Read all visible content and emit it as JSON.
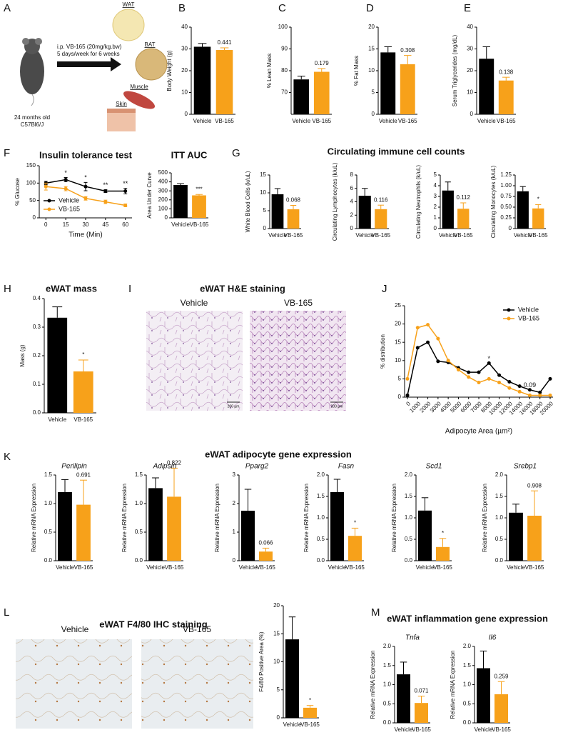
{
  "panel_labels": [
    "A",
    "B",
    "C",
    "D",
    "E",
    "F",
    "G",
    "H",
    "I",
    "J",
    "K",
    "L",
    "M"
  ],
  "schematic": {
    "mouse_age": "24 months old",
    "strain": "C57Bl6/J",
    "treatment": "i.p. VB-165 (20mg/kg.bw)",
    "schedule": "5 days/week for 6 weeks",
    "tissues": [
      "WAT",
      "BAT",
      "Muscle",
      "Skin"
    ]
  },
  "section_titles": {
    "G": "Circulating immune cell counts",
    "I": "eWAT H&E staining",
    "K": "eWAT adipocyte gene expression",
    "L": "eWAT F4/80 IHC staining",
    "M": "eWAT inflammation gene expression"
  },
  "images": {
    "he_labels": [
      "Vehicle",
      "VB-165"
    ],
    "he_scale": "200 µm",
    "ihc_labels": [
      "Vehicle",
      "VB-165"
    ]
  },
  "chart_data": [
    {
      "type": "bar",
      "ylabel": "Body Weight (g)",
      "categories": [
        "Vehicle",
        "VB-165"
      ],
      "values": [
        31,
        29.5
      ],
      "errors": [
        1.5,
        1
      ],
      "colors": [
        "#000000",
        "#f7a11a"
      ],
      "annotation": "0.441",
      "ylim": [
        0,
        40
      ],
      "yticks": [
        0,
        10,
        20,
        30,
        40
      ]
    },
    {
      "type": "bar",
      "ylabel": "% Lean Mass",
      "categories": [
        "Vehicle",
        "VB-165"
      ],
      "values": [
        76,
        79.5
      ],
      "errors": [
        1.5,
        1.5
      ],
      "colors": [
        "#000000",
        "#f7a11a"
      ],
      "annotation": "0.179",
      "ylim": [
        60,
        100
      ],
      "yticks": [
        70,
        80,
        90,
        100
      ]
    },
    {
      "type": "bar",
      "ylabel": "% Fat Mass",
      "categories": [
        "Vehicle",
        "VB-165"
      ],
      "values": [
        14.2,
        11.5
      ],
      "errors": [
        1.3,
        2
      ],
      "colors": [
        "#000000",
        "#f7a11a"
      ],
      "annotation": "0.308",
      "ylim": [
        0,
        20
      ],
      "yticks": [
        0,
        5,
        10,
        15,
        20
      ]
    },
    {
      "type": "bar",
      "ylabel": "Serum Triglycerides (mg/dL)",
      "categories": [
        "Vehicle",
        "VB-165"
      ],
      "values": [
        25.5,
        15.5
      ],
      "errors": [
        5.5,
        1.5
      ],
      "colors": [
        "#000000",
        "#f7a11a"
      ],
      "annotation": "0.138",
      "ylim": [
        0,
        40
      ],
      "yticks": [
        0,
        10,
        20,
        30,
        40
      ]
    },
    {
      "type": "line",
      "title": "Insulin tolerance test",
      "xlabel": "Time (Min)",
      "ylabel": "% Glucose",
      "x": [
        0,
        15,
        30,
        45,
        60
      ],
      "xlim": [
        -5,
        65
      ],
      "xticks": [
        0,
        15,
        30,
        45,
        60
      ],
      "ylim": [
        0,
        150
      ],
      "yticks": [
        0,
        50,
        100,
        150
      ],
      "legend": "lower left",
      "series": [
        {
          "name": "Vehicle",
          "color": "#000000",
          "values": [
            100,
            110,
            90,
            77,
            77
          ],
          "errors": [
            5,
            6,
            12,
            4,
            8
          ]
        },
        {
          "name": "VB-165",
          "color": "#f7a11a",
          "values": [
            90,
            84,
            56,
            46,
            36
          ],
          "errors": [
            10,
            6,
            5,
            5,
            4
          ]
        }
      ],
      "annotations": [
        {
          "x": 15,
          "text": "*"
        },
        {
          "x": 30,
          "text": "*"
        },
        {
          "x": 45,
          "text": "**"
        },
        {
          "x": 60,
          "text": "**"
        }
      ]
    },
    {
      "type": "bar",
      "title": "ITT AUC",
      "ylabel": "Area Under Curve",
      "categories": [
        "Vehicle",
        "VB-165"
      ],
      "values": [
        365,
        250
      ],
      "errors": [
        15,
        10
      ],
      "colors": [
        "#000000",
        "#f7a11a"
      ],
      "annotation": "***",
      "ylim": [
        0,
        500
      ],
      "yticks": [
        0,
        100,
        200,
        300,
        400,
        500
      ]
    },
    {
      "type": "bar",
      "ylabel": "White Blood Cells (k/uL)",
      "categories": [
        "Vehicle",
        "VB-165"
      ],
      "values": [
        9.6,
        5.4
      ],
      "errors": [
        1.6,
        1.1
      ],
      "colors": [
        "#000000",
        "#f7a11a"
      ],
      "annotation": "0.068",
      "ylim": [
        0,
        15
      ],
      "yticks": [
        0,
        5,
        10,
        15
      ]
    },
    {
      "type": "bar",
      "ylabel": "Circulating Lymphocytes (k/uL)",
      "categories": [
        "Vehicle",
        "VB-165"
      ],
      "values": [
        4.9,
        2.9
      ],
      "errors": [
        1.1,
        0.6
      ],
      "colors": [
        "#000000",
        "#f7a11a"
      ],
      "annotation": "0.116",
      "ylim": [
        0,
        8
      ],
      "yticks": [
        0,
        2,
        4,
        6,
        8
      ]
    },
    {
      "type": "bar",
      "ylabel": "Circulating Neutrophils (k/uL)",
      "categories": [
        "Vehicle",
        "VB-165"
      ],
      "values": [
        3.55,
        1.85
      ],
      "errors": [
        0.8,
        0.55
      ],
      "colors": [
        "#000000",
        "#f7a11a"
      ],
      "annotation": "0.112",
      "ylim": [
        0,
        5
      ],
      "yticks": [
        0,
        1,
        2,
        3,
        4,
        5
      ]
    },
    {
      "type": "bar",
      "ylabel": "Circulating Monocytes (k/uL)",
      "categories": [
        "Vehicle",
        "VB-165"
      ],
      "values": [
        0.87,
        0.47
      ],
      "errors": [
        0.11,
        0.09
      ],
      "colors": [
        "#000000",
        "#f7a11a"
      ],
      "annotation": "*",
      "ylim": [
        0,
        1.25
      ],
      "yticks": [
        0,
        0.25,
        {
          "value": 0.5,
          "label": "0.50"
        },
        0.75,
        {
          "value": 1,
          "label": "1.00"
        },
        1.25
      ]
    },
    {
      "type": "bar",
      "title": "eWAT mass",
      "ylabel": "Mass (g)",
      "categories": [
        "Vehicle",
        "VB-165"
      ],
      "values": [
        0.333,
        0.145
      ],
      "errors": [
        0.038,
        0.04
      ],
      "colors": [
        "#000000",
        "#f7a11a"
      ],
      "annotation": "*",
      "ylim": [
        0,
        0.4
      ],
      "yticks": [
        {
          "value": 0,
          "label": "0.0"
        },
        0.1,
        0.2,
        0.3,
        0.4
      ]
    },
    {
      "type": "line",
      "xlabel": "Adipocyte Area (µm²)",
      "ylabel": "% distribution",
      "categories": [
        "0",
        "1000",
        "2000",
        "3000",
        "4000",
        "5000",
        "6000",
        "7000",
        "8000",
        "10000",
        "12000",
        "14000",
        "16000",
        "18000",
        "20000"
      ],
      "ylim": [
        0,
        25
      ],
      "yticks": [
        0,
        5,
        10,
        15,
        20,
        25
      ],
      "legend": "upper right",
      "series": [
        {
          "name": "Vehicle",
          "color": "#000000",
          "values": [
            0.5,
            13.5,
            15,
            9.8,
            9.5,
            8,
            6.8,
            6.8,
            9.3,
            6,
            4.2,
            3,
            2,
            1.3,
            5
          ]
        },
        {
          "name": "VB-165",
          "color": "#f7a11a",
          "values": [
            5,
            19,
            19.8,
            16,
            10,
            7.5,
            5.5,
            4,
            5,
            4,
            2.5,
            1.5,
            0.5,
            0.5,
            0.5
          ]
        }
      ],
      "annotations": [
        {
          "x": "8000",
          "text": "*"
        },
        {
          "x": "16000",
          "text": "0.09"
        }
      ]
    },
    {
      "type": "bar",
      "title": "Perilipin",
      "ylabel": "Relative mRNA Expression",
      "categories": [
        "Vehicle",
        "VB-165"
      ],
      "values": [
        1.2,
        0.98
      ],
      "errors": [
        0.22,
        0.43
      ],
      "colors": [
        "#000000",
        "#f7a11a"
      ],
      "annotation": "0.691",
      "ylim": [
        0,
        1.5
      ],
      "yticks": [
        {
          "value": 0,
          "label": "0.0"
        },
        0.5,
        {
          "value": 1,
          "label": "1.0"
        },
        1.5
      ]
    },
    {
      "type": "bar",
      "title": "Adipsin",
      "ylabel": "Relative mRNA Expression",
      "categories": [
        "Vehicle",
        "VB-165"
      ],
      "values": [
        1.27,
        1.12
      ],
      "errors": [
        0.18,
        0.5
      ],
      "colors": [
        "#000000",
        "#f7a11a"
      ],
      "annotation": "0.822",
      "ylim": [
        0,
        1.5
      ],
      "yticks": [
        {
          "value": 0,
          "label": "0.0"
        },
        0.5,
        {
          "value": 1,
          "label": "1.0"
        },
        1.5
      ]
    },
    {
      "type": "bar",
      "title": "Pparg2",
      "ylabel": "Relative mRNA Expression",
      "categories": [
        "Vehicle",
        "VB-165"
      ],
      "values": [
        1.75,
        0.32
      ],
      "errors": [
        0.75,
        0.12
      ],
      "colors": [
        "#000000",
        "#f7a11a"
      ],
      "annotation": "0.066",
      "ylim": [
        0,
        3
      ],
      "yticks": [
        0,
        1,
        2,
        3
      ]
    },
    {
      "type": "bar",
      "title": "Fasn",
      "ylabel": "Relative mRNA Expression",
      "categories": [
        "Vehicle",
        "VB-165"
      ],
      "values": [
        1.6,
        0.58
      ],
      "errors": [
        0.3,
        0.18
      ],
      "colors": [
        "#000000",
        "#f7a11a"
      ],
      "annotation": "*",
      "ylim": [
        0,
        2
      ],
      "yticks": [
        {
          "value": 0,
          "label": "0.0"
        },
        0.5,
        {
          "value": 1,
          "label": "1.0"
        },
        1.5,
        {
          "value": 2,
          "label": "2.0"
        }
      ]
    },
    {
      "type": "bar",
      "title": "Scd1",
      "ylabel": "Relative mRNA Expression",
      "categories": [
        "Vehicle",
        "VB-165"
      ],
      "values": [
        1.17,
        0.32
      ],
      "errors": [
        0.3,
        0.2
      ],
      "colors": [
        "#000000",
        "#f7a11a"
      ],
      "annotation": "*",
      "ylim": [
        0,
        2
      ],
      "yticks": [
        {
          "value": 0,
          "label": "0.0"
        },
        0.5,
        {
          "value": 1,
          "label": "1.0"
        },
        1.5,
        {
          "value": 2,
          "label": "2.0"
        }
      ]
    },
    {
      "type": "bar",
      "title": "Srebp1",
      "ylabel": "Relative mRNA Expression",
      "categories": [
        "Vehicle",
        "VB-165"
      ],
      "values": [
        1.12,
        1.05
      ],
      "errors": [
        0.2,
        0.58
      ],
      "colors": [
        "#000000",
        "#f7a11a"
      ],
      "annotation": "0.908",
      "ylim": [
        0,
        2
      ],
      "yticks": [
        {
          "value": 0,
          "label": "0.0"
        },
        0.5,
        {
          "value": 1,
          "label": "1.0"
        },
        1.5,
        {
          "value": 2,
          "label": "2.0"
        }
      ]
    },
    {
      "type": "bar",
      "ylabel": "F4/80 Positive Area (%)",
      "categories": [
        "Vehicle",
        "VB-165"
      ],
      "values": [
        14,
        1.8
      ],
      "errors": [
        4,
        0.4
      ],
      "colors": [
        "#000000",
        "#f7a11a"
      ],
      "annotation": "*",
      "ylim": [
        0,
        20
      ],
      "yticks": [
        0,
        5,
        10,
        15,
        20
      ]
    },
    {
      "type": "bar",
      "title": "Tnfa",
      "ylabel": "Relative mRNA Expression",
      "categories": [
        "Vehicle",
        "VB-165"
      ],
      "values": [
        1.27,
        0.52
      ],
      "errors": [
        0.32,
        0.18
      ],
      "colors": [
        "#000000",
        "#f7a11a"
      ],
      "annotation": "0.071",
      "ylim": [
        0,
        2
      ],
      "yticks": [
        {
          "value": 0,
          "label": "0.0"
        },
        0.5,
        {
          "value": 1,
          "label": "1.0"
        },
        1.5,
        {
          "value": 2,
          "label": "2.0"
        }
      ]
    },
    {
      "type": "bar",
      "title": "Il6",
      "ylabel": "Relative mRNA Expression",
      "categories": [
        "Vehicle",
        "VB-165"
      ],
      "values": [
        1.43,
        0.75
      ],
      "errors": [
        0.45,
        0.33
      ],
      "colors": [
        "#000000",
        "#f7a11a"
      ],
      "annotation": "0.259",
      "ylim": [
        0,
        2
      ],
      "yticks": [
        {
          "value": 0,
          "label": "0.0"
        },
        0.5,
        {
          "value": 1,
          "label": "1.0"
        },
        1.5,
        {
          "value": 2,
          "label": "2.0"
        }
      ]
    }
  ]
}
